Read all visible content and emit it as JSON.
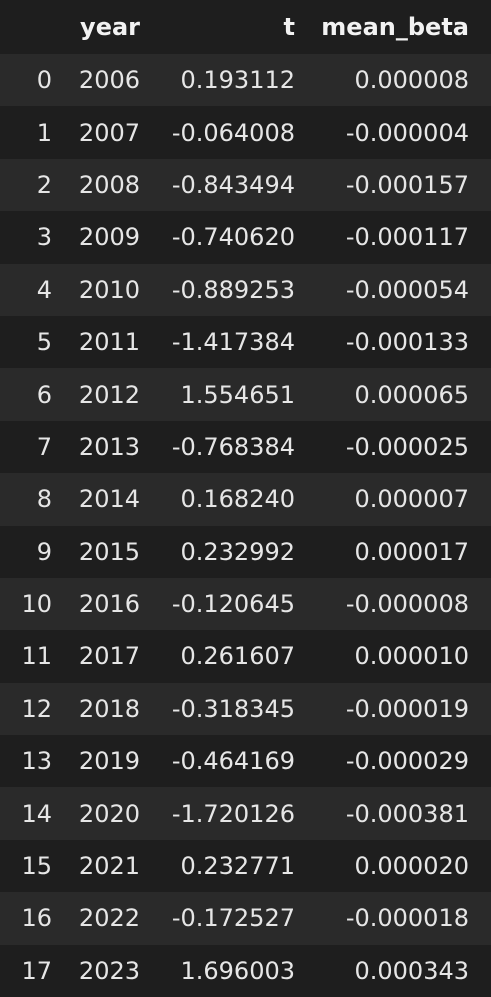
{
  "table": {
    "columns": [
      "",
      "year",
      "t",
      "mean_beta"
    ],
    "rows": [
      {
        "index": "0",
        "year": "2006",
        "t": "0.193112",
        "mean_beta": "0.000008"
      },
      {
        "index": "1",
        "year": "2007",
        "t": "-0.064008",
        "mean_beta": "-0.000004"
      },
      {
        "index": "2",
        "year": "2008",
        "t": "-0.843494",
        "mean_beta": "-0.000157"
      },
      {
        "index": "3",
        "year": "2009",
        "t": "-0.740620",
        "mean_beta": "-0.000117"
      },
      {
        "index": "4",
        "year": "2010",
        "t": "-0.889253",
        "mean_beta": "-0.000054"
      },
      {
        "index": "5",
        "year": "2011",
        "t": "-1.417384",
        "mean_beta": "-0.000133"
      },
      {
        "index": "6",
        "year": "2012",
        "t": "1.554651",
        "mean_beta": "0.000065"
      },
      {
        "index": "7",
        "year": "2013",
        "t": "-0.768384",
        "mean_beta": "-0.000025"
      },
      {
        "index": "8",
        "year": "2014",
        "t": "0.168240",
        "mean_beta": "0.000007"
      },
      {
        "index": "9",
        "year": "2015",
        "t": "0.232992",
        "mean_beta": "0.000017"
      },
      {
        "index": "10",
        "year": "2016",
        "t": "-0.120645",
        "mean_beta": "-0.000008"
      },
      {
        "index": "11",
        "year": "2017",
        "t": "0.261607",
        "mean_beta": "0.000010"
      },
      {
        "index": "12",
        "year": "2018",
        "t": "-0.318345",
        "mean_beta": "-0.000019"
      },
      {
        "index": "13",
        "year": "2019",
        "t": "-0.464169",
        "mean_beta": "-0.000029"
      },
      {
        "index": "14",
        "year": "2020",
        "t": "-1.720126",
        "mean_beta": "-0.000381"
      },
      {
        "index": "15",
        "year": "2021",
        "t": "0.232771",
        "mean_beta": "0.000020"
      },
      {
        "index": "16",
        "year": "2022",
        "t": "-0.172527",
        "mean_beta": "-0.000018"
      },
      {
        "index": "17",
        "year": "2023",
        "t": "1.696003",
        "mean_beta": "0.000343"
      }
    ]
  },
  "colors": {
    "background": "#1e1e1e",
    "stripe": "#2a2a2a",
    "text": "#e6e6e6",
    "header_text": "#f2f2f2"
  }
}
